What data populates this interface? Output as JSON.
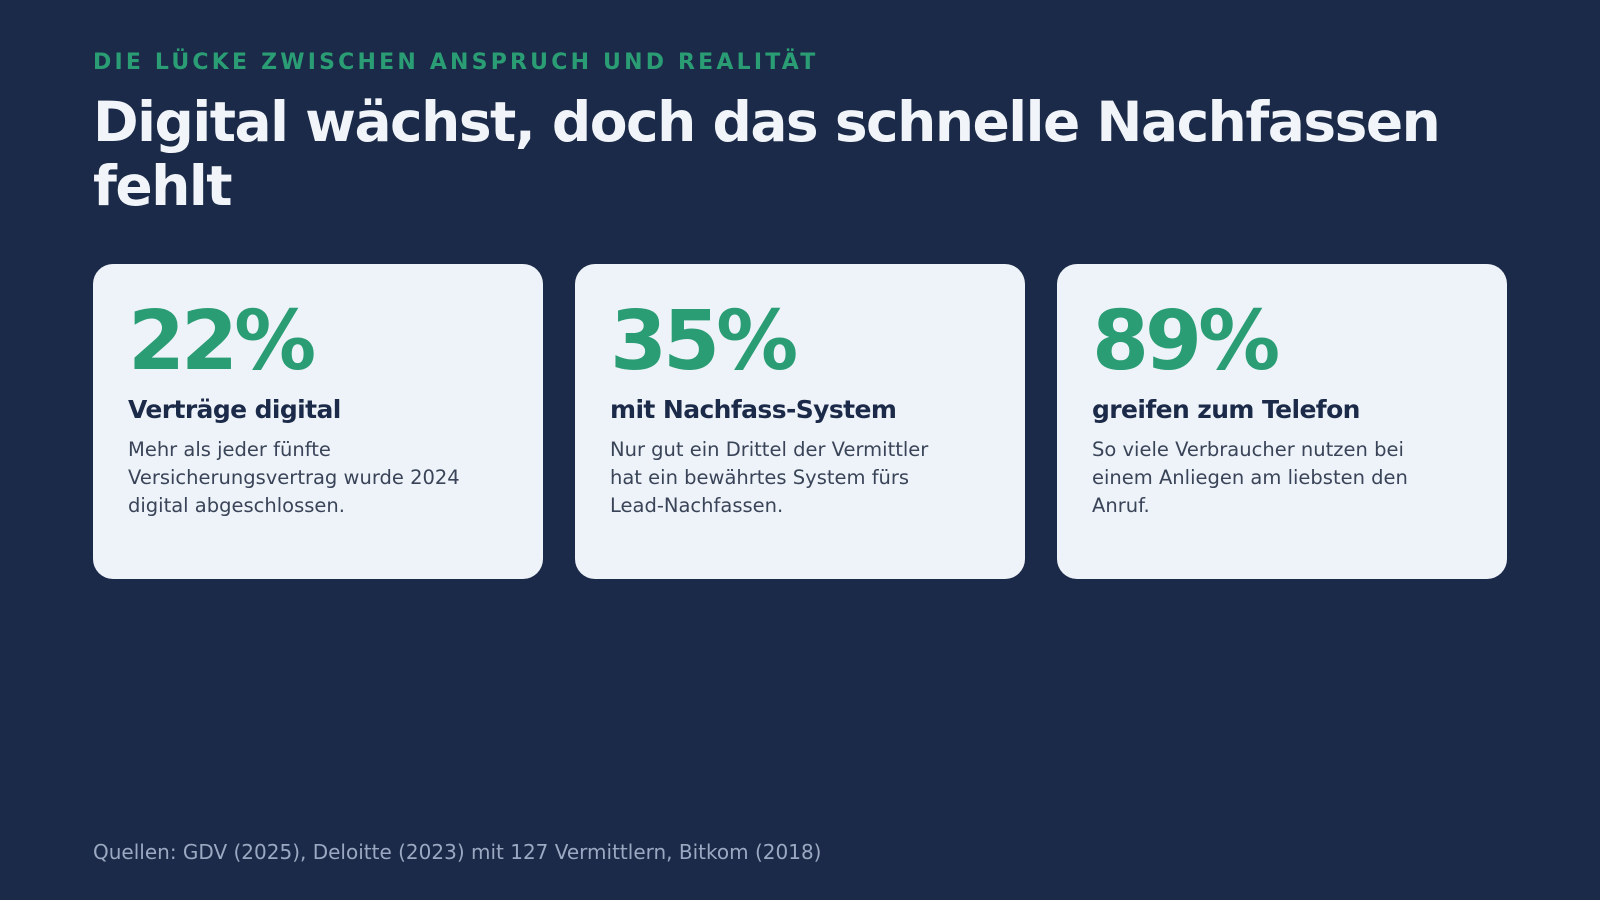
{
  "slide": {
    "eyebrow": "DIE LÜCKE ZWISCHEN ANSPRUCH UND REALITÄT",
    "title": "Digital wächst, doch das schnelle Nachfassen fehlt",
    "cards": [
      {
        "stat": "22%",
        "label": "Verträge digital",
        "text": "Mehr als jeder fünfte Versicherungsvertrag wurde 2024 digital abgeschlossen."
      },
      {
        "stat": "35%",
        "label": "mit Nachfass-System",
        "text": "Nur gut ein Drittel der Vermittler hat ein bewährtes System fürs Lead-Nachfassen."
      },
      {
        "stat": "89%",
        "label": "greifen zum Telefon",
        "text": "So viele Verbraucher nutzen bei einem Anliegen am liebsten den Anruf."
      }
    ],
    "footer": "Quellen: GDV (2025), Deloitte (2023) mit 127 Vermittlern, Bitkom (2018)"
  },
  "colors": {
    "background": "#1b2a48",
    "accent": "#2a9d74",
    "card": "#eef3f9",
    "title": "#f1f5fa"
  }
}
